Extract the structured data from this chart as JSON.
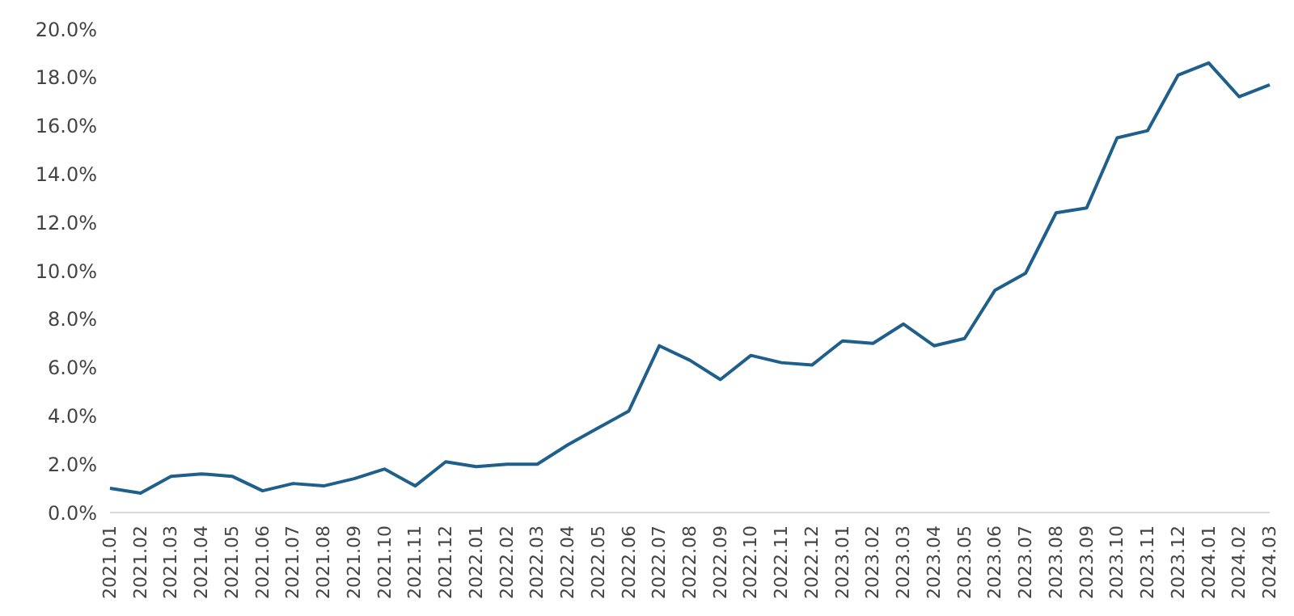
{
  "chart_data": {
    "type": "line",
    "categories": [
      "2021.01",
      "2021.02",
      "2021.03",
      "2021.04",
      "2021.05",
      "2021.06",
      "2021.07",
      "2021.08",
      "2021.09",
      "2021.10",
      "2021.11",
      "2021.12",
      "2022.01",
      "2022.02",
      "2022.03",
      "2022.04",
      "2022.05",
      "2022.06",
      "2022.07",
      "2022.08",
      "2022.09",
      "2022.10",
      "2022.11",
      "2022.12",
      "2023.01",
      "2023.02",
      "2023.03",
      "2023.04",
      "2023.05",
      "2023.06",
      "2023.07",
      "2023.08",
      "2023.09",
      "2023.10",
      "2023.11",
      "2023.12",
      "2024.01",
      "2024.02",
      "2024.03"
    ],
    "series": [
      {
        "color": "#1f5f8b",
        "values": [
          1.0,
          0.8,
          1.5,
          1.6,
          1.5,
          0.9,
          1.2,
          1.1,
          1.4,
          1.8,
          1.1,
          2.1,
          1.9,
          2.0,
          2.0,
          2.8,
          3.5,
          4.2,
          6.9,
          6.3,
          5.5,
          6.5,
          6.2,
          6.1,
          7.1,
          7.0,
          7.8,
          6.9,
          7.2,
          9.2,
          9.9,
          12.4,
          12.6,
          15.5,
          15.8,
          18.1,
          18.6,
          17.2,
          17.7
        ]
      }
    ],
    "ylim": [
      0,
      20
    ],
    "yticks": [
      {
        "value": 0,
        "label": "0.0%"
      },
      {
        "value": 2,
        "label": "2.0%"
      },
      {
        "value": 4,
        "label": "4.0%"
      },
      {
        "value": 6,
        "label": "6.0%"
      },
      {
        "value": 8,
        "label": "8.0%"
      },
      {
        "value": 10,
        "label": "10.0%"
      },
      {
        "value": 12,
        "label": "12.0%"
      },
      {
        "value": 14,
        "label": "14.0%"
      },
      {
        "value": 16,
        "label": "16.0%"
      },
      {
        "value": 18,
        "label": "18.0%"
      },
      {
        "value": 20,
        "label": "20.0%"
      }
    ],
    "grid": false,
    "legend": false,
    "marker": "none",
    "line_style": "solid"
  }
}
